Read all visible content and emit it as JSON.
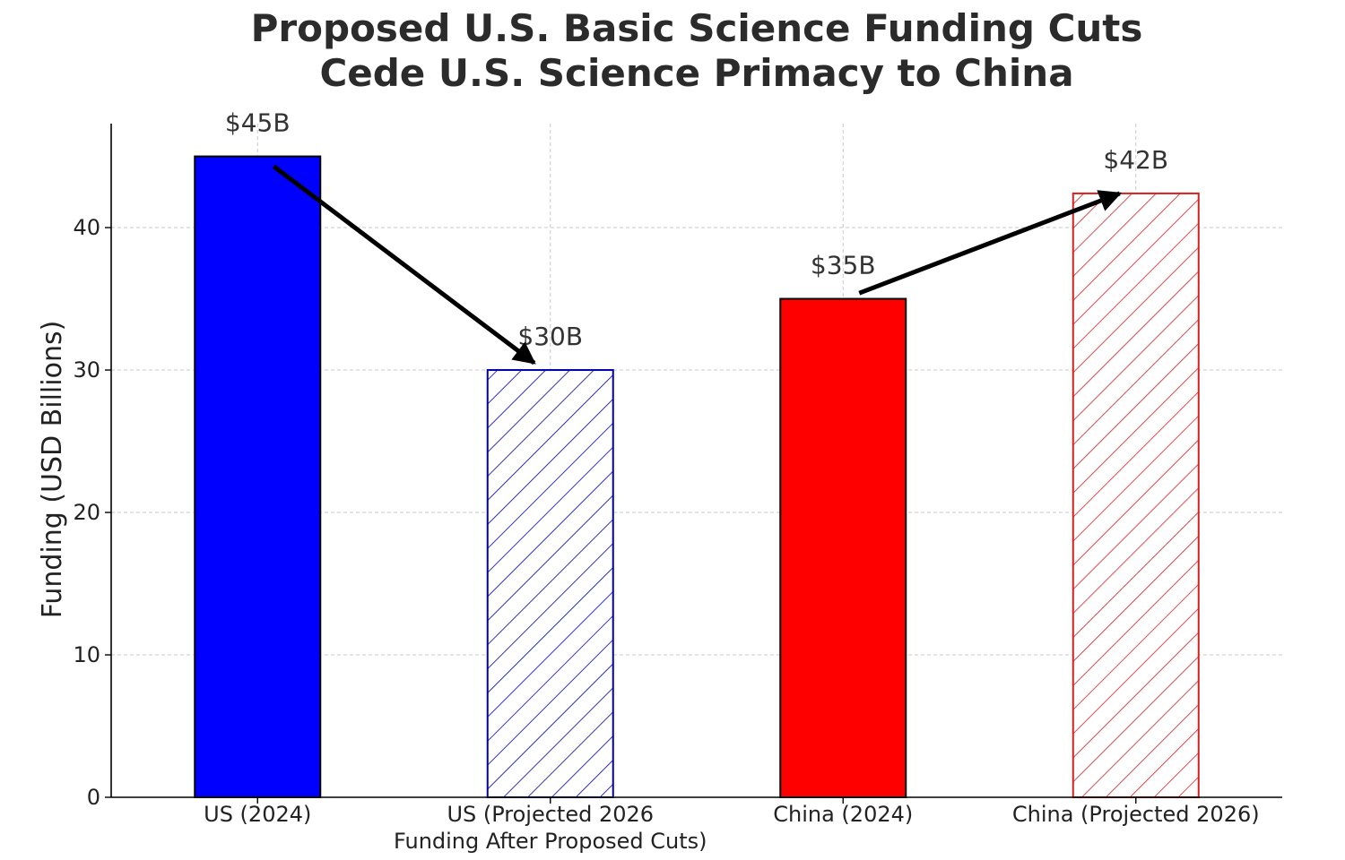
{
  "chart_data": {
    "type": "bar",
    "title_lines": [
      "Proposed U.S. Basic Science Funding Cuts",
      "Cede U.S. Science Primacy to China"
    ],
    "xlabel": "",
    "ylabel": "Funding (USD Billions)",
    "ylim": [
      0,
      47.3
    ],
    "yticks": [
      0,
      10,
      20,
      30,
      40
    ],
    "grid": true,
    "categories": [
      {
        "lines": [
          "US (2024)"
        ]
      },
      {
        "lines": [
          "US (Projected 2026",
          "Funding After Proposed Cuts)"
        ]
      },
      {
        "lines": [
          "China (2024)"
        ]
      },
      {
        "lines": [
          "China (Projected 2026)"
        ]
      }
    ],
    "values": [
      45,
      30,
      35,
      42.4
    ],
    "value_labels": [
      "$45B",
      "$30B",
      "$35B",
      "$42B"
    ],
    "bar_styles": [
      {
        "color": "#0000ff",
        "fill": "solid",
        "edge": "#000000"
      },
      {
        "color": "#0000b0",
        "fill": "hatched",
        "edge": "#0000b0"
      },
      {
        "color": "#ff0000",
        "fill": "solid",
        "edge": "#000000"
      },
      {
        "color": "#d42020",
        "fill": "hatched",
        "edge": "#d42020"
      }
    ],
    "annotations": [
      {
        "type": "arrow",
        "from": {
          "category": 0,
          "y": 44.3
        },
        "to": {
          "category": 1,
          "y": 30.5
        }
      },
      {
        "type": "arrow",
        "from": {
          "category": 2,
          "y": 35.4
        },
        "to": {
          "category": 3,
          "y": 42.4
        }
      }
    ]
  }
}
